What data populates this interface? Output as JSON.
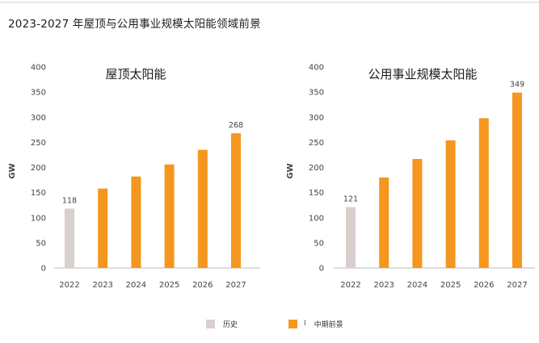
{
  "page_title": "2023-2027 年屋顶与公用事业规模太阳能领域前景",
  "colors": {
    "history": "#d8d0cd",
    "forecast": "#f5961e",
    "axis": "#bbbbbb"
  },
  "legend": {
    "history_label": "历史",
    "separator": "I",
    "forecast_label": "中期前景"
  },
  "chart_data": [
    {
      "type": "bar",
      "title": "屋顶太阳能",
      "ylabel": "GW",
      "ylim": [
        0,
        400
      ],
      "yticks": [
        0,
        50,
        100,
        150,
        200,
        250,
        300,
        350,
        400
      ],
      "categories": [
        "2022",
        "2023",
        "2024",
        "2025",
        "2026",
        "2027"
      ],
      "values": [
        118,
        158,
        182,
        206,
        235,
        268
      ],
      "kinds": [
        "history",
        "forecast",
        "forecast",
        "forecast",
        "forecast",
        "forecast"
      ],
      "data_labels": [
        "118",
        "",
        "",
        "",
        "",
        "268"
      ],
      "grid": false
    },
    {
      "type": "bar",
      "title": "公用事业规模太阳能",
      "ylabel": "GW",
      "ylim": [
        0,
        400
      ],
      "yticks": [
        0,
        50,
        100,
        150,
        200,
        250,
        300,
        350,
        400
      ],
      "categories": [
        "2022",
        "2023",
        "2024",
        "2025",
        "2026",
        "2027"
      ],
      "values": [
        121,
        180,
        217,
        254,
        298,
        349
      ],
      "kinds": [
        "history",
        "forecast",
        "forecast",
        "forecast",
        "forecast",
        "forecast"
      ],
      "data_labels": [
        "121",
        "",
        "",
        "",
        "",
        "349"
      ],
      "grid": false
    }
  ]
}
